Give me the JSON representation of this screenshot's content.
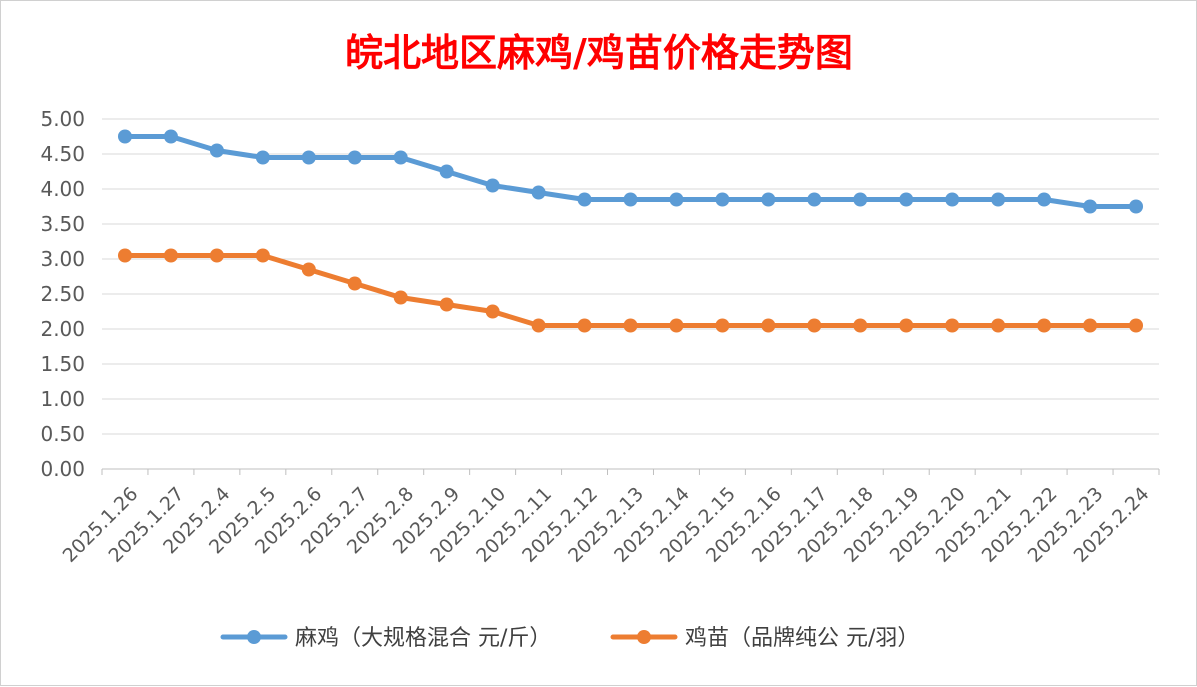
{
  "chart_data": {
    "type": "line",
    "title": "皖北地区麻鸡/鸡苗价格走势图",
    "title_color": "#ff0000",
    "categories": [
      "2025.1.26",
      "2025.1.27",
      "2025.2.4",
      "2025.2.5",
      "2025.2.6",
      "2025.2.7",
      "2025.2.8",
      "2025.2.9",
      "2025.2.10",
      "2025.2.11",
      "2025.2.12",
      "2025.2.13",
      "2025.2.14",
      "2025.2.15",
      "2025.2.16",
      "2025.2.17",
      "2025.2.18",
      "2025.2.19",
      "2025.2.20",
      "2025.2.21",
      "2025.2.22",
      "2025.2.23",
      "2025.2.24"
    ],
    "ylim": [
      0,
      5
    ],
    "yticks": [
      "0.00",
      "0.50",
      "1.00",
      "1.50",
      "2.00",
      "2.50",
      "3.00",
      "3.50",
      "4.00",
      "4.50",
      "5.00"
    ],
    "grid": true,
    "legend_position": "bottom",
    "series": [
      {
        "name": "麻鸡（大规格混合 元/斤）",
        "color": "#5b9bd5",
        "values": [
          4.75,
          4.75,
          4.55,
          4.45,
          4.45,
          4.45,
          4.45,
          4.25,
          4.05,
          3.95,
          3.85,
          3.85,
          3.85,
          3.85,
          3.85,
          3.85,
          3.85,
          3.85,
          3.85,
          3.85,
          3.85,
          3.75,
          3.75
        ]
      },
      {
        "name": "鸡苗（品牌纯公 元/羽）",
        "color": "#ed7d31",
        "values": [
          3.05,
          3.05,
          3.05,
          3.05,
          2.85,
          2.65,
          2.45,
          2.35,
          2.25,
          2.05,
          2.05,
          2.05,
          2.05,
          2.05,
          2.05,
          2.05,
          2.05,
          2.05,
          2.05,
          2.05,
          2.05,
          2.05,
          2.05
        ]
      }
    ]
  }
}
